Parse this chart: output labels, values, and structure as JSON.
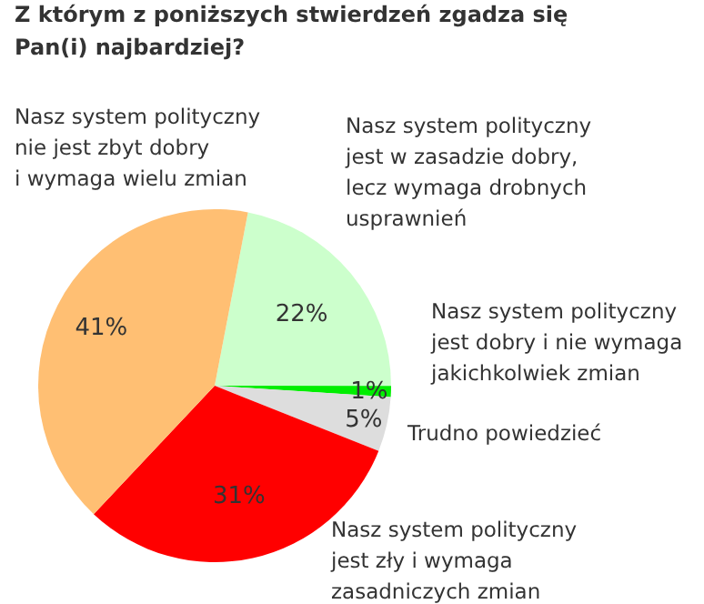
{
  "chart_data": {
    "type": "pie",
    "title": "Z którym z poniższych stwierdzeń zgadza się Pan(i) najbardziej?",
    "categories": [
      "Nasz system polityczny jest w zasadzie dobry, lecz wymaga drobnych usprawnień",
      "Nasz system polityczny jest dobry i nie wymaga jakichkolwiek zmian",
      "Trudno powiedzieć",
      "Nasz system polityczny jest zły i wymaga zasadniczych zmian",
      "Nasz system polityczny nie jest zbyt dobry i wymaga wielu zmian"
    ],
    "values": [
      22,
      1,
      5,
      31,
      41
    ],
    "value_labels": [
      "22%",
      "1%",
      "5%",
      "31%",
      "41%"
    ],
    "colors": [
      "#ccffcc",
      "#00ee00",
      "#dddddd",
      "#ff0000",
      "#ffbf73"
    ]
  }
}
